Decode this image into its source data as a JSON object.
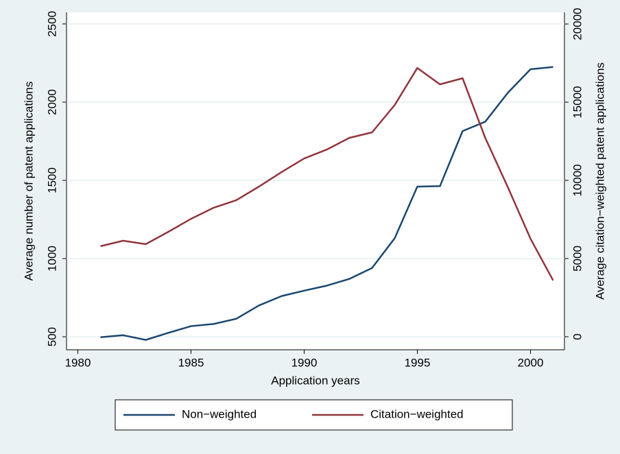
{
  "chart_data": {
    "type": "line",
    "x": [
      1981,
      1982,
      1983,
      1984,
      1985,
      1986,
      1987,
      1988,
      1989,
      1990,
      1991,
      1992,
      1993,
      1994,
      1995,
      1996,
      1997,
      1998,
      1999,
      2000,
      2001
    ],
    "series": [
      {
        "name": "Non−weighted",
        "color": "#1a476f",
        "values": [
          497,
          510,
          480,
          525,
          568,
          582,
          615,
          700,
          760,
          795,
          827,
          870,
          940,
          1130,
          1460,
          1463,
          1815,
          1875,
          2060,
          2210,
          2225
        ]
      },
      {
        "name": "Citation−weighted",
        "color": "#90353b",
        "axis": "y2",
        "values": [
          5790,
          6140,
          5920,
          6710,
          7540,
          8250,
          8730,
          9600,
          10530,
          11400,
          11970,
          12720,
          13070,
          14820,
          17190,
          16140,
          16530,
          12720,
          9560,
          6270,
          3600
        ]
      }
    ],
    "xlabel": "Application years",
    "ylabel": "Average number of patent applications",
    "y2label": "Average citation−weighted patent applications",
    "xlim": [
      1979.5,
      2001.5
    ],
    "xticks": [
      1980,
      1985,
      1990,
      1995,
      2000
    ],
    "ylim": [
      417,
      2574
    ],
    "yticks": [
      500,
      1000,
      1500,
      2000,
      2500
    ],
    "y2lim": [
      -833,
      20746
    ],
    "y2ticks": [
      0,
      5000,
      10000,
      15000,
      20000
    ],
    "grid": true,
    "legend": "bottom"
  }
}
